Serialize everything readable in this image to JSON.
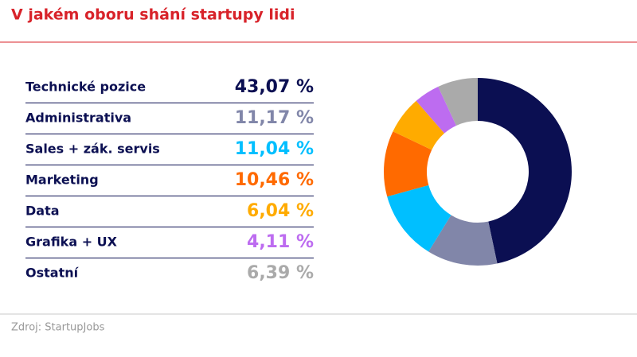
{
  "chart_data": {
    "type": "pie",
    "title": "V jakém oboru shání startupy lidi",
    "source": "Zdroj: StartupJobs",
    "categories": [
      "Technické pozice",
      "Administrativa",
      "Sales + zák. servis",
      "Marketing",
      "Data",
      "Grafika + UX",
      "Ostatní"
    ],
    "values": [
      43.07,
      11.17,
      11.04,
      10.46,
      6.04,
      4.11,
      6.39
    ],
    "value_labels": [
      "43,07 %",
      "11,17 %",
      "11,04 %",
      "10,46 %",
      "6,04 %",
      "4,11 %",
      "6,39 %"
    ],
    "colors": [
      "#0b0f52",
      "#8186a9",
      "#00bfff",
      "#ff6a00",
      "#ffab00",
      "#bd6cf0",
      "#aaaaaa"
    ]
  }
}
